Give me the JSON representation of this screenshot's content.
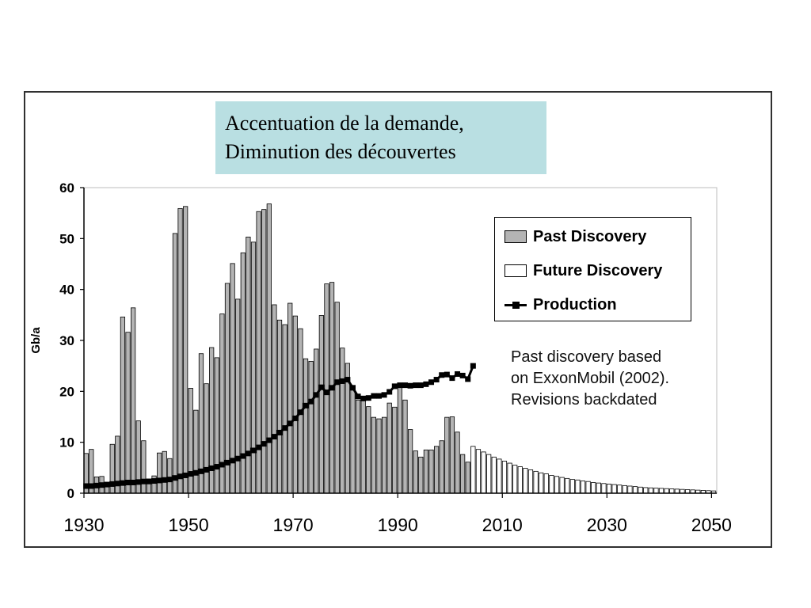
{
  "caption": {
    "line1": "Accentuation de la demande,",
    "line2": "Diminution des découvertes"
  },
  "colors": {
    "past_bar": "#b4b4b4",
    "future_bar": "#ffffff",
    "production": "#000000",
    "caption_bg": "#b9dfe2"
  },
  "note": {
    "line1": "Past discovery based",
    "line2": "on ExxonMobil (2002).",
    "line3": "Revisions backdated"
  },
  "chart_data": {
    "type": "bar",
    "title": "",
    "xlabel": "",
    "ylabel": "Gb/a",
    "xlim": [
      1930,
      2051
    ],
    "ylim": [
      0,
      60
    ],
    "x_ticks": [
      "1930",
      "1950",
      "1970",
      "1990",
      "2010",
      "2030",
      "2050"
    ],
    "y_ticks": [
      "0",
      "10",
      "20",
      "30",
      "40",
      "50",
      "60"
    ],
    "grid": false,
    "legend_position": "top-right",
    "legend": [
      "Past Discovery",
      "Future Discovery",
      "Production"
    ],
    "series": [
      {
        "name": "Past Discovery",
        "type": "bar",
        "x_start": 1930,
        "values": [
          7.8,
          8.6,
          3.2,
          3.3,
          1.7,
          9.6,
          11.2,
          34.6,
          31.6,
          36.4,
          14.2,
          10.3,
          2.8,
          3.4,
          7.9,
          8.2,
          6.8,
          51.0,
          55.9,
          56.3,
          20.6,
          16.3,
          27.4,
          21.5,
          28.6,
          26.6,
          35.2,
          41.2,
          45.1,
          38.1,
          47.2,
          50.3,
          49.3,
          55.3,
          55.7,
          56.8,
          37.0,
          34.0,
          33.1,
          37.3,
          34.8,
          32.3,
          26.4,
          25.9,
          28.3,
          34.9,
          41.1,
          41.4,
          37.5,
          28.5,
          25.5,
          20.3,
          18.3,
          18.6,
          17.0,
          14.9,
          14.6,
          14.9,
          17.7,
          16.9,
          20.9,
          18.3,
          12.5,
          8.3,
          7.1,
          8.5,
          8.5,
          9.2,
          10.3,
          14.9,
          15.0,
          12.0,
          7.6,
          6.1
        ]
      },
      {
        "name": "Future Discovery",
        "type": "bar",
        "x_start": 2004,
        "values": [
          9.2,
          8.6,
          8.1,
          7.6,
          7.1,
          6.7,
          6.3,
          5.9,
          5.5,
          5.2,
          4.9,
          4.6,
          4.3,
          4.0,
          3.8,
          3.5,
          3.3,
          3.1,
          2.9,
          2.7,
          2.6,
          2.4,
          2.3,
          2.1,
          2.0,
          1.9,
          1.8,
          1.7,
          1.6,
          1.5,
          1.4,
          1.3,
          1.2,
          1.1,
          1.05,
          1.0,
          0.95,
          0.9,
          0.85,
          0.8,
          0.75,
          0.7,
          0.65,
          0.6,
          0.55,
          0.5,
          0.45
        ]
      },
      {
        "name": "Production",
        "type": "line",
        "x_start": 1930,
        "values": [
          1.4,
          1.4,
          1.5,
          1.6,
          1.7,
          1.8,
          1.9,
          2.0,
          2.1,
          2.1,
          2.2,
          2.3,
          2.3,
          2.4,
          2.5,
          2.6,
          2.7,
          3.0,
          3.3,
          3.5,
          3.8,
          4.0,
          4.3,
          4.6,
          4.9,
          5.2,
          5.6,
          6.0,
          6.4,
          6.8,
          7.3,
          7.8,
          8.4,
          9.0,
          9.7,
          10.4,
          11.1,
          11.9,
          12.8,
          13.7,
          14.7,
          15.9,
          17.2,
          18.0,
          19.3,
          20.8,
          19.8,
          20.7,
          21.8,
          22.0,
          22.3,
          20.7,
          19.0,
          18.6,
          18.7,
          19.1,
          19.1,
          19.3,
          19.9,
          21.0,
          21.2,
          21.2,
          21.1,
          21.2,
          21.2,
          21.4,
          21.8,
          22.3,
          23.2,
          23.3,
          22.6,
          23.4,
          23.1,
          22.4,
          25.0
        ]
      }
    ]
  }
}
